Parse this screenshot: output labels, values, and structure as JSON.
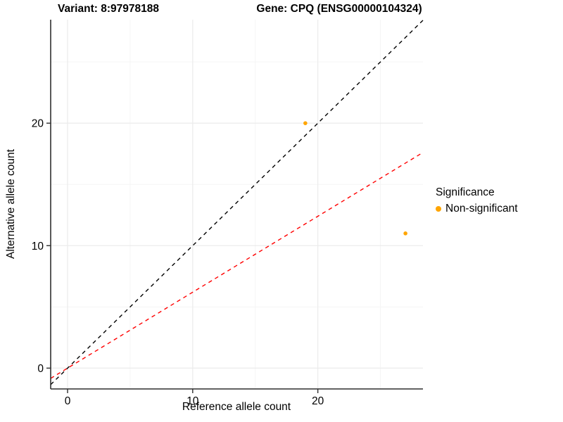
{
  "chart_data": {
    "type": "scatter",
    "title_left": "Variant: 8:97978188",
    "title_right": "Gene: CPQ (ENSG00000104324)",
    "xlabel": "Reference allele count",
    "ylabel": "Alternative allele count",
    "xlim": [
      -1.35,
      28.4
    ],
    "ylim": [
      -1.7,
      28.45
    ],
    "x_major_ticks": [
      0,
      10,
      20
    ],
    "x_minor_ticks": [
      5,
      15,
      25
    ],
    "y_major_ticks": [
      0,
      10,
      20
    ],
    "y_minor_ticks": [
      5,
      15,
      25
    ],
    "grid": "major+minor",
    "series": [
      {
        "name": "Non-significant",
        "color": "#FFA500",
        "point_radius": 2.8,
        "points": [
          {
            "x": 19,
            "y": 20
          },
          {
            "x": 27,
            "y": 11
          }
        ]
      }
    ],
    "lines": [
      {
        "name": "identity-line",
        "slope": 1,
        "intercept": 0,
        "color": "#000000",
        "style": "dashed"
      },
      {
        "name": "expected-ratio-line",
        "slope": 0.62,
        "intercept": 0,
        "color": "#FF0000",
        "style": "dashed"
      }
    ],
    "legend": {
      "title": "Significance",
      "position": "right",
      "items": [
        {
          "label": "Non-significant",
          "color": "#FFA500"
        }
      ]
    }
  },
  "colors": {
    "background": "#FFFFFF",
    "grid_major": "#EBEBEB",
    "grid_minor": "#F4F4F4",
    "axis": "#2F2F2F",
    "text": "#000000"
  }
}
